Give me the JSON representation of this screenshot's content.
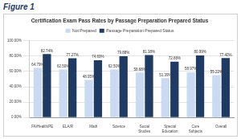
{
  "heading": "Figure 1",
  "chart_data": {
    "type": "bar",
    "title": "Certification Exam Pass Rates by Passage Preparation Prepared Status",
    "categories": [
      "FA/Health/PE",
      "ELA/R",
      "Math",
      "Science",
      "Social Studies",
      "Special Education",
      "Core Subjects",
      "Overall"
    ],
    "series": [
      {
        "name": "Not Prepared",
        "color": "#c9daf2",
        "values": [
          64.79,
          62.5,
          48.95,
          62.5,
          58.68,
          51.39,
          58.97,
          55.22
        ],
        "value_labels": [
          "64.79%",
          "62.50%",
          "48.95%",
          "62.50%",
          "58.68%",
          "51.39%",
          "58.97%",
          "55.22%"
        ]
      },
      {
        "name": "Passage Preparation Prepared Status",
        "color": "#1f3a63",
        "values": [
          82.74,
          77.27,
          74.69,
          79.88,
          81.38,
          72.88,
          80.99,
          77.4
        ],
        "value_labels": [
          "82.74%",
          "77.27%",
          "74.69%",
          "79.88%",
          "81.38%",
          "72.88%",
          "80.99%",
          "77.40%"
        ]
      }
    ],
    "ylim": [
      0,
      100
    ],
    "yticks": [
      {
        "value": 0,
        "label": "0.00%"
      },
      {
        "value": 20,
        "label": "20.00%"
      },
      {
        "value": 40,
        "label": "40.00%"
      },
      {
        "value": 60,
        "label": "60.00%"
      },
      {
        "value": 80,
        "label": "80.00%"
      },
      {
        "value": 100,
        "label": "100.00%"
      }
    ],
    "grid": true,
    "legend": "top",
    "data_labels": true
  }
}
